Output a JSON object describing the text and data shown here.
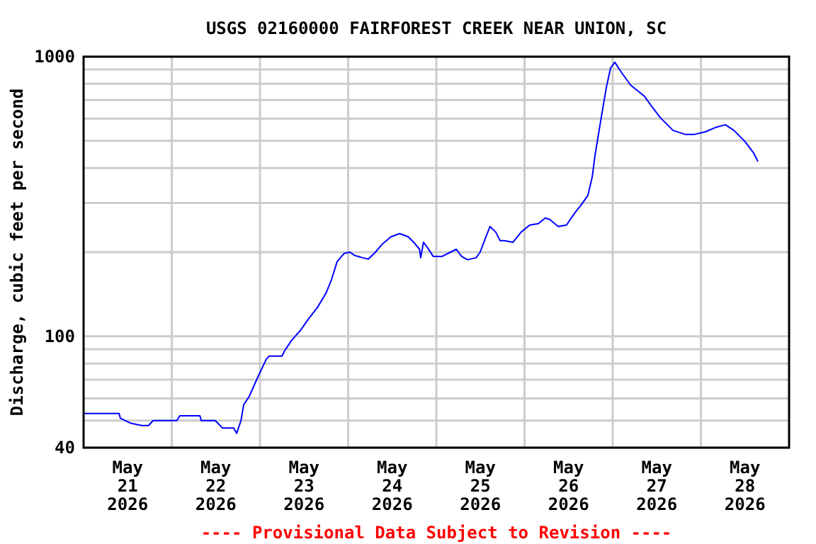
{
  "chart_data": {
    "type": "line",
    "title": "USGS 02160000 FAIRFOREST CREEK NEAR UNION, SC",
    "ylabel": "Discharge, cubic feet per second",
    "annotations": [
      "---- Provisional Data Subject to Revision ----"
    ],
    "log": true,
    "grid": true,
    "marker": "none",
    "line_style": "solid",
    "xlim": [
      "2026-05-21T00:00",
      "2026-05-29T00:00"
    ],
    "xticks": [
      {
        "value": "2026-05-21T12:00",
        "label": "May\n21\n2026"
      },
      {
        "value": "2026-05-22T00:00",
        "label": null
      },
      {
        "value": "2026-05-22T12:00",
        "label": "May\n22\n2026"
      },
      {
        "value": "2026-05-23T00:00",
        "label": null
      },
      {
        "value": "2026-05-23T12:00",
        "label": "May\n23\n2026"
      },
      {
        "value": "2026-05-24T00:00",
        "label": null
      },
      {
        "value": "2026-05-24T12:00",
        "label": "May\n24\n2026"
      },
      {
        "value": "2026-05-25T00:00",
        "label": null
      },
      {
        "value": "2026-05-25T12:00",
        "label": "May\n25\n2026"
      },
      {
        "value": "2026-05-26T00:00",
        "label": null
      },
      {
        "value": "2026-05-26T12:00",
        "label": "May\n26\n2026"
      },
      {
        "value": "2026-05-27T00:00",
        "label": null
      },
      {
        "value": "2026-05-27T12:00",
        "label": "May\n27\n2026"
      },
      {
        "value": "2026-05-28T00:00",
        "label": null
      },
      {
        "value": "2026-05-28T12:00",
        "label": "May\n28\n2026"
      }
    ],
    "ylim": [
      40,
      1000
    ],
    "yticks": [
      40,
      {
        "value": 50,
        "label": null
      },
      {
        "value": 60,
        "label": null
      },
      {
        "value": 70,
        "label": null
      },
      {
        "value": 80,
        "label": null
      },
      {
        "value": 90,
        "label": null
      },
      100,
      {
        "value": 200,
        "label": null
      },
      {
        "value": 300,
        "label": null
      },
      {
        "value": 400,
        "label": null
      },
      {
        "value": 500,
        "label": null
      },
      {
        "value": 600,
        "label": null
      },
      {
        "value": 700,
        "label": null
      },
      {
        "value": 800,
        "label": null
      },
      {
        "value": 900,
        "label": null
      },
      1000
    ],
    "series": [
      {
        "color": "#0000ff",
        "x": [
          "2026-05-21T00:00",
          "2026-05-21T09:40",
          "2026-05-21T10:00",
          "2026-05-21T12:40",
          "2026-05-21T15:50",
          "2026-05-21T17:40",
          "2026-05-21T18:55",
          "2026-05-22T01:25",
          "2026-05-22T02:10",
          "2026-05-22T07:40",
          "2026-05-22T08:00",
          "2026-05-22T11:50",
          "2026-05-22T13:50",
          "2026-05-22T16:50",
          "2026-05-22T17:40",
          "2026-05-22T18:50",
          "2026-05-22T19:35",
          "2026-05-22T21:05",
          "2026-05-22T22:40",
          "2026-05-23T00:10",
          "2026-05-23T01:45",
          "2026-05-23T02:30",
          "2026-05-23T06:00",
          "2026-05-23T06:45",
          "2026-05-23T08:40",
          "2026-05-23T11:00",
          "2026-05-23T13:20",
          "2026-05-23T15:40",
          "2026-05-23T18:00",
          "2026-05-23T19:30",
          "2026-05-23T21:00",
          "2026-05-23T22:55",
          "2026-05-24T00:30",
          "2026-05-24T01:40",
          "2026-05-24T03:55",
          "2026-05-24T05:30",
          "2026-05-24T07:25",
          "2026-05-24T09:20",
          "2026-05-24T11:40",
          "2026-05-24T14:00",
          "2026-05-24T16:20",
          "2026-05-24T17:50",
          "2026-05-24T19:25",
          "2026-05-24T19:45",
          "2026-05-24T20:30",
          "2026-05-24T21:40",
          "2026-05-24T23:10",
          "2026-05-25T01:30",
          "2026-05-25T03:50",
          "2026-05-25T05:25",
          "2026-05-25T06:55",
          "2026-05-25T08:30",
          "2026-05-25T10:50",
          "2026-05-25T11:55",
          "2026-05-25T13:30",
          "2026-05-25T14:35",
          "2026-05-25T16:10",
          "2026-05-25T17:20",
          "2026-05-25T18:30",
          "2026-05-25T20:50",
          "2026-05-25T23:05",
          "2026-05-26T01:25",
          "2026-05-26T03:45",
          "2026-05-26T05:40",
          "2026-05-26T06:50",
          "2026-05-26T09:10",
          "2026-05-26T11:25",
          "2026-05-26T13:45",
          "2026-05-26T15:20",
          "2026-05-26T17:15",
          "2026-05-26T18:25",
          "2026-05-26T19:10",
          "2026-05-26T20:45",
          "2026-05-26T22:15",
          "2026-05-26T23:25",
          "2026-05-27T00:35",
          "2026-05-27T02:05",
          "2026-05-27T04:50",
          "2026-05-27T08:40",
          "2026-05-27T10:35",
          "2026-05-27T12:55",
          "2026-05-27T16:25",
          "2026-05-27T19:50",
          "2026-05-27T22:10",
          "2026-05-28T01:15",
          "2026-05-28T03:55",
          "2026-05-28T06:40",
          "2026-05-28T09:00",
          "2026-05-28T12:00",
          "2026-05-28T14:20",
          "2026-05-28T15:30"
        ],
        "values": [
          53,
          53,
          51,
          49,
          48,
          48,
          50,
          50,
          52,
          52,
          50,
          50,
          47,
          47,
          45,
          50,
          57,
          61,
          68,
          75,
          83,
          85,
          85,
          89,
          97,
          105,
          116,
          127,
          143,
          160,
          185,
          198,
          200,
          195,
          191,
          189,
          200,
          214,
          227,
          233,
          227,
          217,
          205,
          191,
          217,
          207,
          193,
          193,
          200,
          205,
          193,
          188,
          191,
          200,
          227,
          247,
          236,
          220,
          220,
          217,
          236,
          250,
          253,
          265,
          262,
          247,
          250,
          277,
          294,
          319,
          371,
          442,
          592,
          774,
          911,
          955,
          890,
          792,
          721,
          665,
          606,
          545,
          527,
          527,
          539,
          558,
          571,
          545,
          497,
          453,
          422
        ]
      }
    ]
  }
}
